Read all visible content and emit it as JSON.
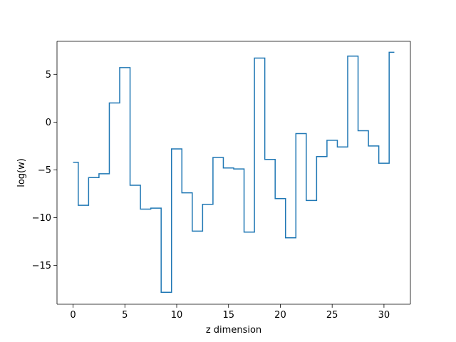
{
  "chart_data": {
    "type": "line",
    "style": "step-mid",
    "title": "",
    "xlabel": "z dimension",
    "ylabel": "log(w)",
    "xlim": [
      -1.55,
      32.55
    ],
    "ylim": [
      -19.05,
      8.45
    ],
    "x_ticks": [
      0,
      5,
      10,
      15,
      20,
      25,
      30
    ],
    "y_ticks": [
      -15,
      -10,
      -5,
      0,
      5
    ],
    "grid": false,
    "legend": "none",
    "series": [
      {
        "color": "#1f77b4",
        "x": [
          0,
          1,
          2,
          3,
          4,
          5,
          6,
          7,
          8,
          9,
          10,
          11,
          12,
          13,
          14,
          15,
          16,
          17,
          18,
          19,
          20,
          21,
          22,
          23,
          24,
          25,
          26,
          27,
          28,
          29,
          30,
          31
        ],
        "y": [
          -4.2,
          -8.7,
          -5.8,
          -5.4,
          2.0,
          5.7,
          -6.6,
          -9.1,
          -9.0,
          -17.8,
          -2.8,
          -7.4,
          -11.4,
          -8.6,
          -3.7,
          -4.8,
          -4.9,
          -11.5,
          6.7,
          -3.9,
          -8.0,
          -12.1,
          -1.2,
          -8.2,
          -3.6,
          -1.9,
          -2.6,
          6.9,
          -0.9,
          -2.5,
          -4.3,
          7.3
        ]
      }
    ]
  }
}
